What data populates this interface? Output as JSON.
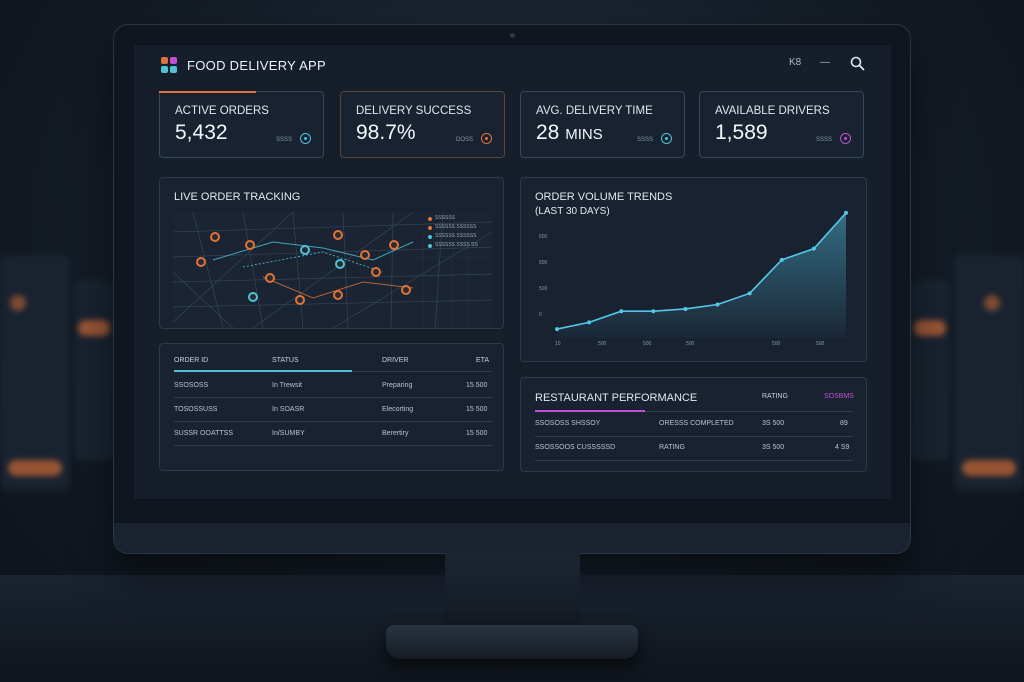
{
  "header": {
    "title": "FOOD DELIVERY APP",
    "icon_left_text": "K8",
    "icon_mid_text": "—",
    "search_icon": "search-icon"
  },
  "metrics": [
    {
      "label": "ACTIVE ORDERS",
      "value": "5,432",
      "unit": "",
      "tag": "SSSS",
      "color": "#e0733a"
    },
    {
      "label": "DELIVERY SUCCESS",
      "value": "98.7%",
      "unit": "",
      "tag": "OOSS",
      "color": "#e0733a"
    },
    {
      "label": "AVG. DELIVERY TIME",
      "value": "28",
      "unit": "MINS",
      "tag": "SSSS",
      "color": "#4ec3d8"
    },
    {
      "label": "AVAILABLE DRIVERS",
      "value": "1,589",
      "unit": "",
      "tag": "SSSS",
      "color": "#c24fd0"
    }
  ],
  "tracking": {
    "title": "LIVE ORDER TRACKING",
    "legend": [
      {
        "label": "SSSSSS",
        "color": "#e0733a"
      },
      {
        "label": "SSSSSS SSSSSS",
        "color": "#e0733a"
      },
      {
        "label": "SSSSSS SSSSSS",
        "color": "#4ec3d8"
      },
      {
        "label": "SSSSSS SSSS SS",
        "color": "#4ec3d8"
      }
    ]
  },
  "orders_table": {
    "headers": [
      "ORDER ID",
      "STATUS",
      "DRIVER",
      "ETA"
    ],
    "rows": [
      [
        "SSOSOSS",
        "In Trewsit",
        "Preparing",
        "15.500"
      ],
      [
        "TOSOSSUSS",
        "In SOASR",
        "Elecorting",
        "15 500"
      ],
      [
        "SUSSR OOATTSS",
        "In/SUMBY",
        "Berertiry",
        "15 500"
      ]
    ]
  },
  "volume": {
    "title": "ORDER VOLUME TRENDS",
    "subtitle": "(LAST 30 DAYS)",
    "y_ticks": [
      "500",
      "500",
      "500",
      "0"
    ],
    "x_ticks": [
      "10",
      "500",
      "500",
      "500",
      "500",
      "500"
    ]
  },
  "chart_data": {
    "type": "area",
    "title": "ORDER VOLUME TRENDS",
    "subtitle": "(LAST 30 DAYS)",
    "y_ticks": [
      "500",
      "500",
      "500",
      "0"
    ],
    "x_ticks": [
      "10",
      "500",
      "500",
      "500",
      "500",
      "500"
    ],
    "values": [
      4,
      7,
      12,
      12,
      13,
      15,
      20,
      35,
      40,
      56
    ],
    "ylim": [
      0,
      60
    ],
    "grid": false,
    "color": "#55c8e6"
  },
  "restaurant": {
    "title": "RESTAURANT PERFORMANCE",
    "headers": [
      "RATING",
      "SOSBMS"
    ],
    "rows": [
      [
        "SSOSOSS SHSSOY",
        "ORESSS COMPLETED",
        "3S 500",
        "89"
      ],
      [
        "SSOSSOOS CUSSSSSD",
        "RATING",
        "3S 500",
        "4 S9"
      ]
    ]
  }
}
